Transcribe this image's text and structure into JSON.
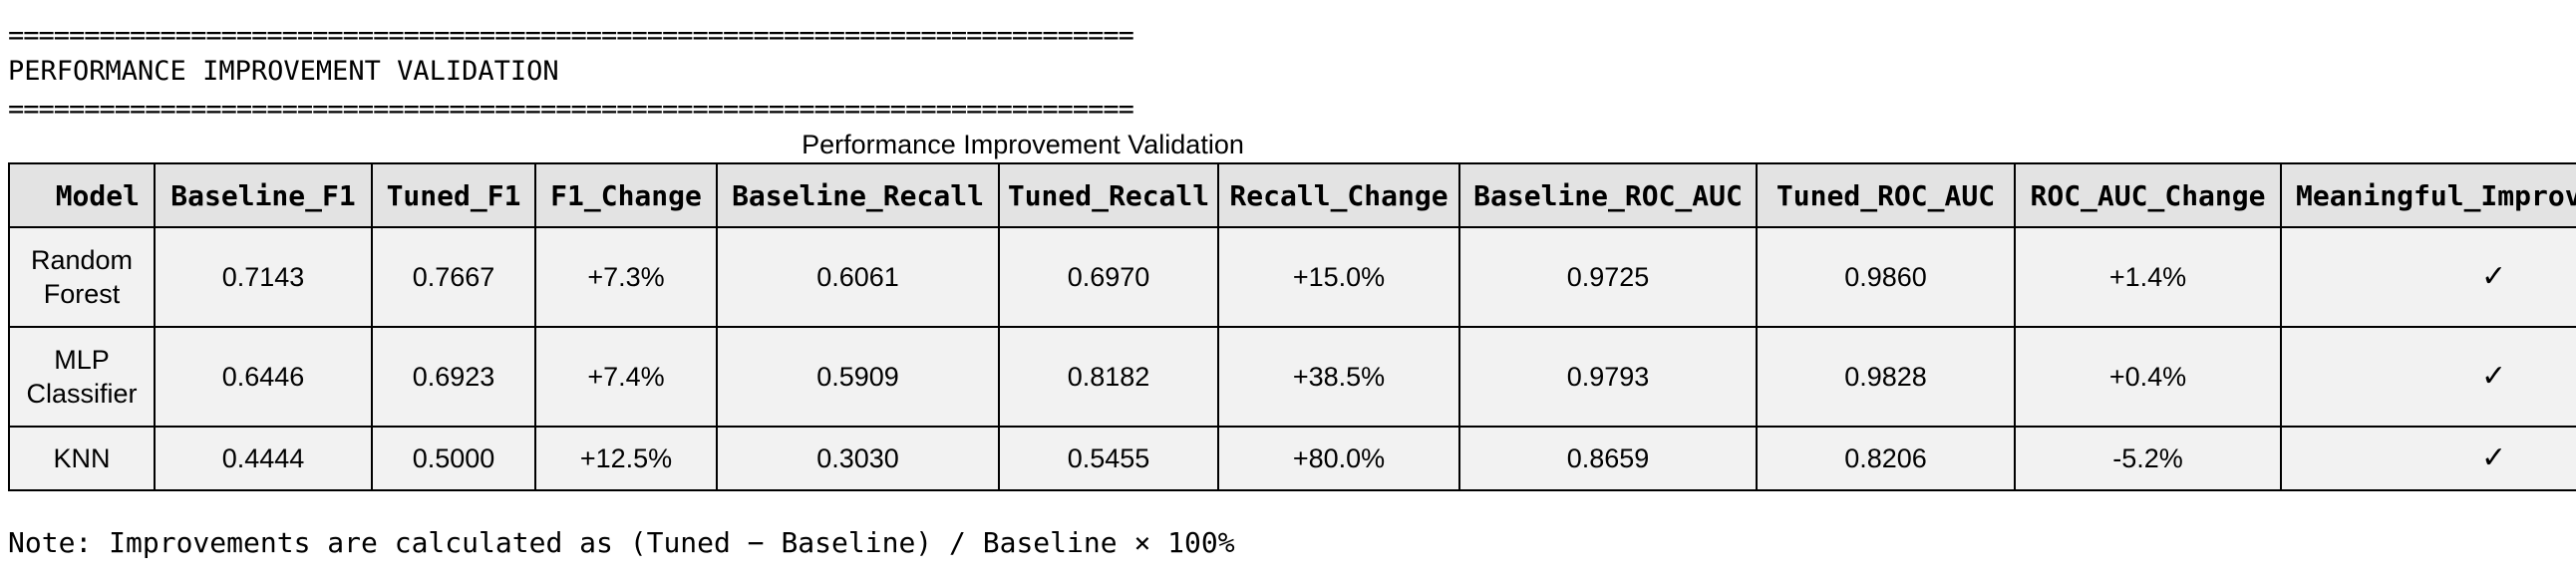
{
  "report": {
    "rule": "==========================================================================",
    "heading": "PERFORMANCE IMPROVEMENT VALIDATION",
    "table_title": "Performance Improvement Validation",
    "note": "Note: Improvements are calculated as (Tuned − Baseline) / Baseline × 100%"
  },
  "table": {
    "headers": [
      "Model",
      "Baseline_F1",
      "Tuned_F1",
      "F1_Change",
      "Baseline_Recall",
      "Tuned_Recall",
      "Recall_Change",
      "Baseline_ROC_AUC",
      "Tuned_ROC_AUC",
      "ROC_AUC_Change",
      "Meaningful_Improvement"
    ],
    "rows": [
      [
        "Random Forest",
        "0.7143",
        "0.7667",
        "+7.3%",
        "0.6061",
        "0.6970",
        "+15.0%",
        "0.9725",
        "0.9860",
        "+1.4%",
        "✓"
      ],
      [
        "MLP Classifier",
        "0.6446",
        "0.6923",
        "+7.4%",
        "0.5909",
        "0.8182",
        "+38.5%",
        "0.9793",
        "0.9828",
        "+0.4%",
        "✓"
      ],
      [
        "KNN",
        "0.4444",
        "0.5000",
        "+12.5%",
        "0.3030",
        "0.5455",
        "+80.0%",
        "0.8659",
        "0.8206",
        "-5.2%",
        "✓"
      ]
    ]
  }
}
